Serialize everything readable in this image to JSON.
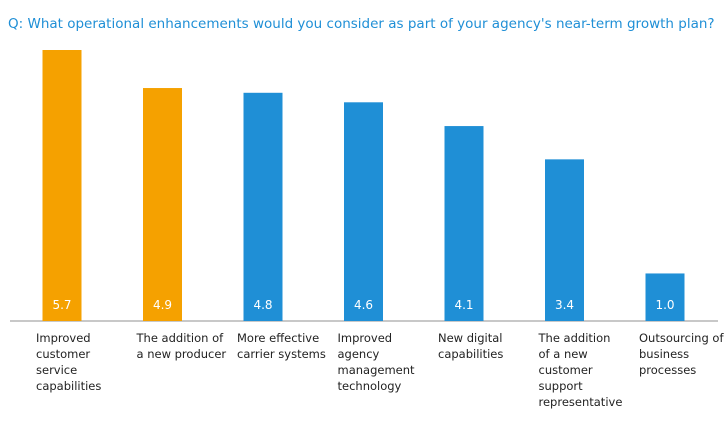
{
  "chart_data": {
    "type": "bar",
    "title": "Q: What operational enhancements would you consider as part of your agency's near-term growth plan?",
    "categories": [
      "Improved\ncustomer\nservice\ncapabilities",
      "The addition of\na new producer",
      "More effective\ncarrier systems",
      "Improved agency\nmanagement\ntechnology",
      "New digital\ncapabilities",
      "The addition\nof a new\ncustomer\nsupport\nrepresentative",
      "Outsourcing of\nbusiness\nprocesses"
    ],
    "values": [
      5.7,
      4.9,
      4.8,
      4.6,
      4.1,
      3.4,
      1.0
    ],
    "value_labels": [
      "5.7",
      "4.9",
      "4.8",
      "4.6",
      "4.1",
      "3.4",
      "1.0"
    ],
    "colors": [
      "#f5a100",
      "#f5a100",
      "#1f8fd6",
      "#1f8fd6",
      "#1f8fd6",
      "#1f8fd6",
      "#1f8fd6"
    ]
  }
}
